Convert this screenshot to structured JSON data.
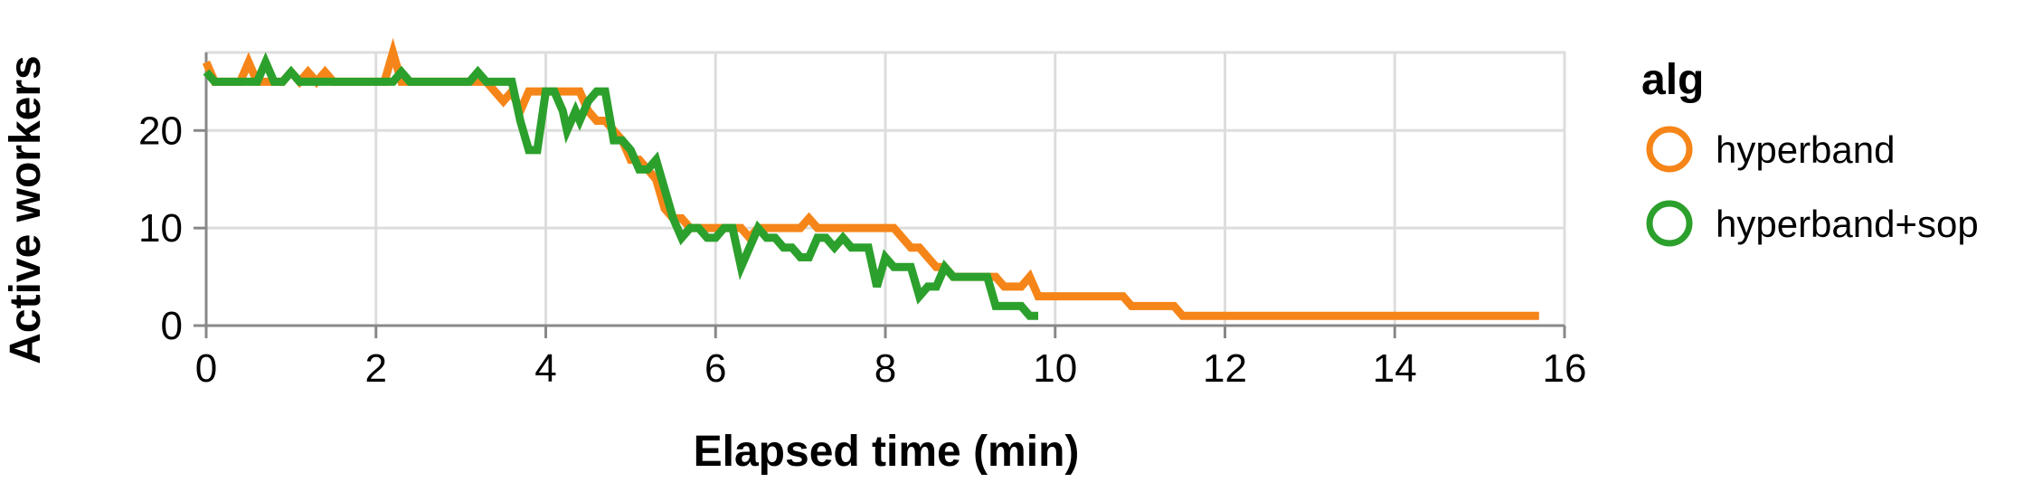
{
  "chart_data": {
    "type": "line",
    "xlabel": "Elapsed time (min)",
    "ylabel": "Active workers",
    "xlim": [
      0,
      16
    ],
    "ylim": [
      0,
      28
    ],
    "x_ticks": [
      0,
      2,
      4,
      6,
      8,
      10,
      12,
      14,
      16
    ],
    "y_ticks": [
      0,
      10,
      20
    ],
    "grid": true,
    "legend": {
      "title": "alg",
      "placement": "right"
    },
    "series": [
      {
        "name": "hyperband",
        "color": "#f58518",
        "points": [
          [
            0.0,
            27
          ],
          [
            0.1,
            25
          ],
          [
            0.4,
            25
          ],
          [
            0.5,
            27
          ],
          [
            0.6,
            25
          ],
          [
            0.9,
            25
          ],
          [
            1.0,
            26
          ],
          [
            1.1,
            25
          ],
          [
            1.2,
            26
          ],
          [
            1.3,
            25
          ],
          [
            1.4,
            26
          ],
          [
            1.5,
            25
          ],
          [
            2.1,
            25
          ],
          [
            2.2,
            28
          ],
          [
            2.3,
            25
          ],
          [
            3.3,
            25
          ],
          [
            3.4,
            24
          ],
          [
            3.5,
            23
          ],
          [
            3.6,
            24
          ],
          [
            3.7,
            22
          ],
          [
            3.8,
            24
          ],
          [
            4.0,
            24
          ],
          [
            4.4,
            24
          ],
          [
            4.5,
            22
          ],
          [
            4.6,
            21
          ],
          [
            4.7,
            21
          ],
          [
            4.8,
            20
          ],
          [
            4.9,
            19
          ],
          [
            5.0,
            17
          ],
          [
            5.1,
            17
          ],
          [
            5.2,
            16
          ],
          [
            5.3,
            15
          ],
          [
            5.4,
            12
          ],
          [
            5.5,
            11
          ],
          [
            5.6,
            11
          ],
          [
            5.7,
            10
          ],
          [
            5.9,
            10
          ],
          [
            6.0,
            10
          ],
          [
            6.3,
            10
          ],
          [
            6.4,
            9
          ],
          [
            6.5,
            10
          ],
          [
            6.6,
            10
          ],
          [
            6.9,
            10
          ],
          [
            7.0,
            10
          ],
          [
            7.1,
            11
          ],
          [
            7.2,
            10
          ],
          [
            7.4,
            10
          ],
          [
            8.0,
            10
          ],
          [
            8.1,
            10
          ],
          [
            8.2,
            9
          ],
          [
            8.3,
            8
          ],
          [
            8.4,
            8
          ],
          [
            8.5,
            7
          ],
          [
            8.6,
            6
          ],
          [
            8.7,
            6
          ],
          [
            8.8,
            5
          ],
          [
            9.3,
            5
          ],
          [
            9.4,
            4
          ],
          [
            9.5,
            4
          ],
          [
            9.6,
            4
          ],
          [
            9.7,
            5
          ],
          [
            9.8,
            3
          ],
          [
            10.8,
            3
          ],
          [
            10.9,
            2
          ],
          [
            11.4,
            2
          ],
          [
            11.5,
            1
          ],
          [
            12.0,
            1
          ],
          [
            15.7,
            1
          ]
        ]
      },
      {
        "name": "hyperband+sop",
        "color": "#2ca02c",
        "points": [
          [
            0.0,
            26
          ],
          [
            0.1,
            25
          ],
          [
            0.6,
            25
          ],
          [
            0.7,
            27
          ],
          [
            0.8,
            25
          ],
          [
            0.9,
            25
          ],
          [
            1.0,
            26
          ],
          [
            1.1,
            25
          ],
          [
            2.2,
            25
          ],
          [
            2.3,
            26
          ],
          [
            2.4,
            25
          ],
          [
            3.1,
            25
          ],
          [
            3.2,
            26
          ],
          [
            3.3,
            25
          ],
          [
            3.6,
            25
          ],
          [
            3.7,
            21
          ],
          [
            3.8,
            18
          ],
          [
            3.9,
            18
          ],
          [
            4.0,
            24
          ],
          [
            4.1,
            24
          ],
          [
            4.2,
            22
          ],
          [
            4.25,
            20
          ],
          [
            4.35,
            22
          ],
          [
            4.4,
            21
          ],
          [
            4.5,
            23
          ],
          [
            4.6,
            24
          ],
          [
            4.7,
            24
          ],
          [
            4.8,
            19
          ],
          [
            4.9,
            19
          ],
          [
            5.0,
            18
          ],
          [
            5.1,
            16
          ],
          [
            5.2,
            16
          ],
          [
            5.3,
            17
          ],
          [
            5.4,
            14
          ],
          [
            5.5,
            11
          ],
          [
            5.6,
            9
          ],
          [
            5.7,
            10
          ],
          [
            5.8,
            10
          ],
          [
            5.9,
            9
          ],
          [
            6.0,
            9
          ],
          [
            6.1,
            10
          ],
          [
            6.2,
            10
          ],
          [
            6.3,
            6
          ],
          [
            6.4,
            8
          ],
          [
            6.5,
            10
          ],
          [
            6.6,
            9
          ],
          [
            6.7,
            9
          ],
          [
            6.8,
            8
          ],
          [
            6.9,
            8
          ],
          [
            7.0,
            7
          ],
          [
            7.1,
            7
          ],
          [
            7.2,
            9
          ],
          [
            7.3,
            9
          ],
          [
            7.4,
            8
          ],
          [
            7.5,
            9
          ],
          [
            7.6,
            8
          ],
          [
            7.7,
            8
          ],
          [
            7.8,
            8
          ],
          [
            7.9,
            4
          ],
          [
            8.0,
            7
          ],
          [
            8.1,
            6
          ],
          [
            8.3,
            6
          ],
          [
            8.4,
            3
          ],
          [
            8.5,
            4
          ],
          [
            8.6,
            4
          ],
          [
            8.7,
            6
          ],
          [
            8.8,
            5
          ],
          [
            9.2,
            5
          ],
          [
            9.3,
            2
          ],
          [
            9.5,
            2
          ],
          [
            9.6,
            2
          ],
          [
            9.7,
            1
          ],
          [
            9.8,
            1
          ]
        ]
      }
    ]
  }
}
